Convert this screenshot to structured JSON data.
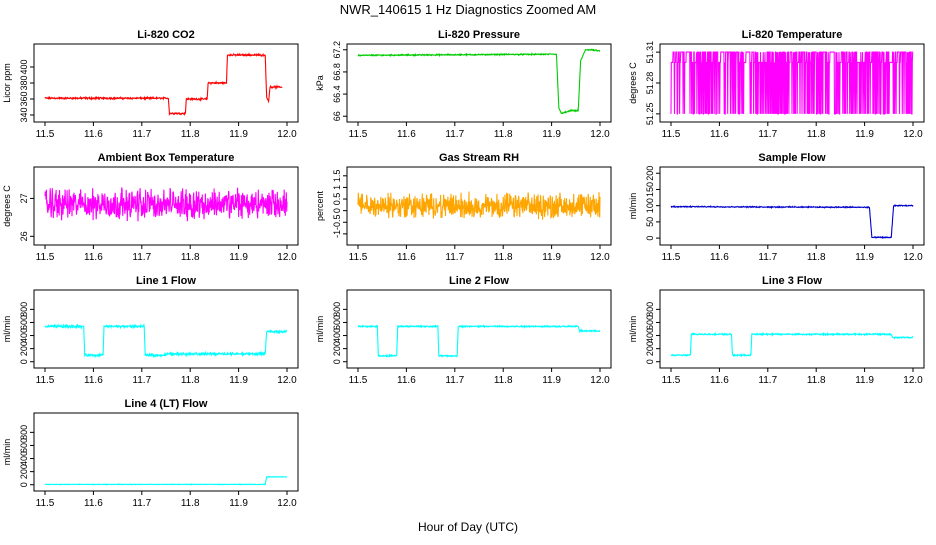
{
  "figure": {
    "title": "NWR_140615  1 Hz Diagnostics Zoomed AM",
    "xlabel": "Hour of Day (UTC)"
  },
  "chart_data": [
    {
      "type": "line",
      "title": "Li-820 CO2",
      "ylabel": "Licor ppm",
      "color": "#ff0000",
      "xlim": [
        11.5,
        12.0
      ],
      "ylim": [
        335,
        425
      ],
      "xticks": [
        "11.5",
        "11.6",
        "11.7",
        "11.8",
        "11.9",
        "12.0"
      ],
      "yticks": [
        340,
        360,
        380,
        400
      ],
      "x": [
        11.5,
        11.755,
        11.757,
        11.79,
        11.792,
        11.835,
        11.837,
        11.875,
        11.877,
        11.955,
        11.958,
        11.962,
        11.965,
        11.99
      ],
      "y": [
        361,
        361,
        342,
        342,
        360,
        360,
        380,
        380,
        415,
        415,
        362,
        357,
        375,
        375
      ],
      "noise": 0.8
    },
    {
      "type": "line",
      "title": "Li-820 Pressure",
      "ylabel": "kPa",
      "color": "#00cc00",
      "xlim": [
        11.5,
        12.0
      ],
      "ylim": [
        65.95,
        67.25
      ],
      "xticks": [
        "11.5",
        "11.6",
        "11.7",
        "11.8",
        "11.9",
        "12.0"
      ],
      "yticks": [
        66.0,
        66.4,
        66.8,
        67.2
      ],
      "x": [
        11.5,
        11.91,
        11.915,
        11.92,
        11.94,
        11.955,
        11.96,
        11.97,
        11.98,
        12.0
      ],
      "y": [
        67.1,
        67.12,
        66.15,
        66.05,
        66.1,
        66.1,
        67.0,
        67.2,
        67.2,
        67.18
      ],
      "noise": 0.008
    },
    {
      "type": "line",
      "title": "Li-820 Temperature",
      "ylabel": "degrees C",
      "color": "#ff00ff",
      "xlim": [
        11.5,
        12.0
      ],
      "ylim": [
        51.245,
        51.315
      ],
      "xticks": [
        "11.5",
        "11.6",
        "11.7",
        "11.8",
        "11.9",
        "12.0"
      ],
      "yticks": [
        51.25,
        51.28,
        51.31
      ],
      "levels": [
        51.25,
        51.31
      ],
      "mid": 51.3,
      "x": [
        11.5,
        12.0
      ]
    },
    {
      "type": "line",
      "title": "Ambient Box Temperature",
      "ylabel": "degrees C",
      "color": "#ff00ff",
      "xlim": [
        11.5,
        12.0
      ],
      "ylim": [
        25.85,
        27.75
      ],
      "xticks": [
        "11.5",
        "11.6",
        "11.7",
        "11.8",
        "11.9",
        "12.0"
      ],
      "yticks": [
        26.0,
        27.0
      ],
      "x": [
        11.5,
        12.0
      ],
      "y": [
        26.85,
        26.85
      ],
      "noise": 0.3
    },
    {
      "type": "line",
      "title": "Gas Stream RH",
      "ylabel": "percent",
      "color": "#ffa500",
      "xlim": [
        11.5,
        12.0
      ],
      "ylim": [
        -1.35,
        1.75
      ],
      "xticks": [
        "11.5",
        "11.6",
        "11.7",
        "11.8",
        "11.9",
        "12.0"
      ],
      "yticks": [
        -1.0,
        -0.5,
        0.0,
        0.5,
        1.0,
        1.5
      ],
      "x": [
        11.5,
        12.0
      ],
      "y": [
        0.2,
        0.2
      ],
      "noise": 0.4
    },
    {
      "type": "line",
      "title": "Sample Flow",
      "ylabel": "ml/min",
      "color": "#0000cc",
      "xlim": [
        11.5,
        12.0
      ],
      "ylim": [
        -12,
        210
      ],
      "xticks": [
        "11.5",
        "11.6",
        "11.7",
        "11.8",
        "11.9",
        "12.0"
      ],
      "yticks": [
        0,
        50,
        100,
        150,
        200
      ],
      "x": [
        11.5,
        11.91,
        11.915,
        11.955,
        11.96,
        12.0
      ],
      "y": [
        97,
        95,
        2,
        2,
        100,
        100
      ],
      "noise": 1.2
    },
    {
      "type": "line",
      "title": "Line 1 Flow",
      "ylabel": "ml/min",
      "color": "#00ffff",
      "xlim": [
        11.5,
        12.0
      ],
      "ylim": [
        -50,
        1050
      ],
      "xticks": [
        "11.5",
        "11.6",
        "11.7",
        "11.8",
        "11.9",
        "12.0"
      ],
      "yticks": [
        0,
        200,
        400,
        600,
        800
      ],
      "x": [
        11.5,
        11.58,
        11.582,
        11.62,
        11.622,
        11.705,
        11.707,
        11.75,
        11.752,
        11.955,
        11.958,
        12.0
      ],
      "y": [
        540,
        540,
        100,
        100,
        540,
        540,
        100,
        100,
        120,
        120,
        460,
        460
      ],
      "noise": 15
    },
    {
      "type": "line",
      "title": "Line 2 Flow",
      "ylabel": "ml/min",
      "color": "#00ffff",
      "xlim": [
        11.5,
        12.0
      ],
      "ylim": [
        -50,
        1050
      ],
      "xticks": [
        "11.5",
        "11.6",
        "11.7",
        "11.8",
        "11.9",
        "12.0"
      ],
      "yticks": [
        0,
        200,
        400,
        600,
        800
      ],
      "x": [
        11.5,
        11.54,
        11.542,
        11.58,
        11.582,
        11.665,
        11.667,
        11.705,
        11.707,
        11.955,
        11.958,
        12.0
      ],
      "y": [
        540,
        540,
        90,
        90,
        540,
        540,
        90,
        90,
        540,
        540,
        470,
        470
      ],
      "noise": 8
    },
    {
      "type": "line",
      "title": "Line 3 Flow",
      "ylabel": "ml/min",
      "color": "#00ffff",
      "xlim": [
        11.5,
        12.0
      ],
      "ylim": [
        -50,
        1050
      ],
      "xticks": [
        "11.5",
        "11.6",
        "11.7",
        "11.8",
        "11.9",
        "12.0"
      ],
      "yticks": [
        0,
        200,
        400,
        600,
        800
      ],
      "x": [
        11.5,
        11.54,
        11.542,
        11.625,
        11.627,
        11.665,
        11.667,
        11.955,
        11.958,
        12.0
      ],
      "y": [
        100,
        100,
        420,
        420,
        100,
        100,
        420,
        420,
        370,
        370
      ],
      "noise": 8
    },
    {
      "type": "line",
      "title": "Line 4 (LT) Flow",
      "ylabel": "ml/min",
      "color": "#00ffff",
      "xlim": [
        11.5,
        12.0
      ],
      "ylim": [
        -50,
        1050
      ],
      "xticks": [
        "11.5",
        "11.6",
        "11.7",
        "11.8",
        "11.9",
        "12.0"
      ],
      "yticks": [
        0,
        200,
        400,
        600,
        800
      ],
      "x": [
        11.5,
        11.955,
        11.958,
        12.0
      ],
      "y": [
        5,
        5,
        120,
        120
      ],
      "noise": 3
    }
  ]
}
